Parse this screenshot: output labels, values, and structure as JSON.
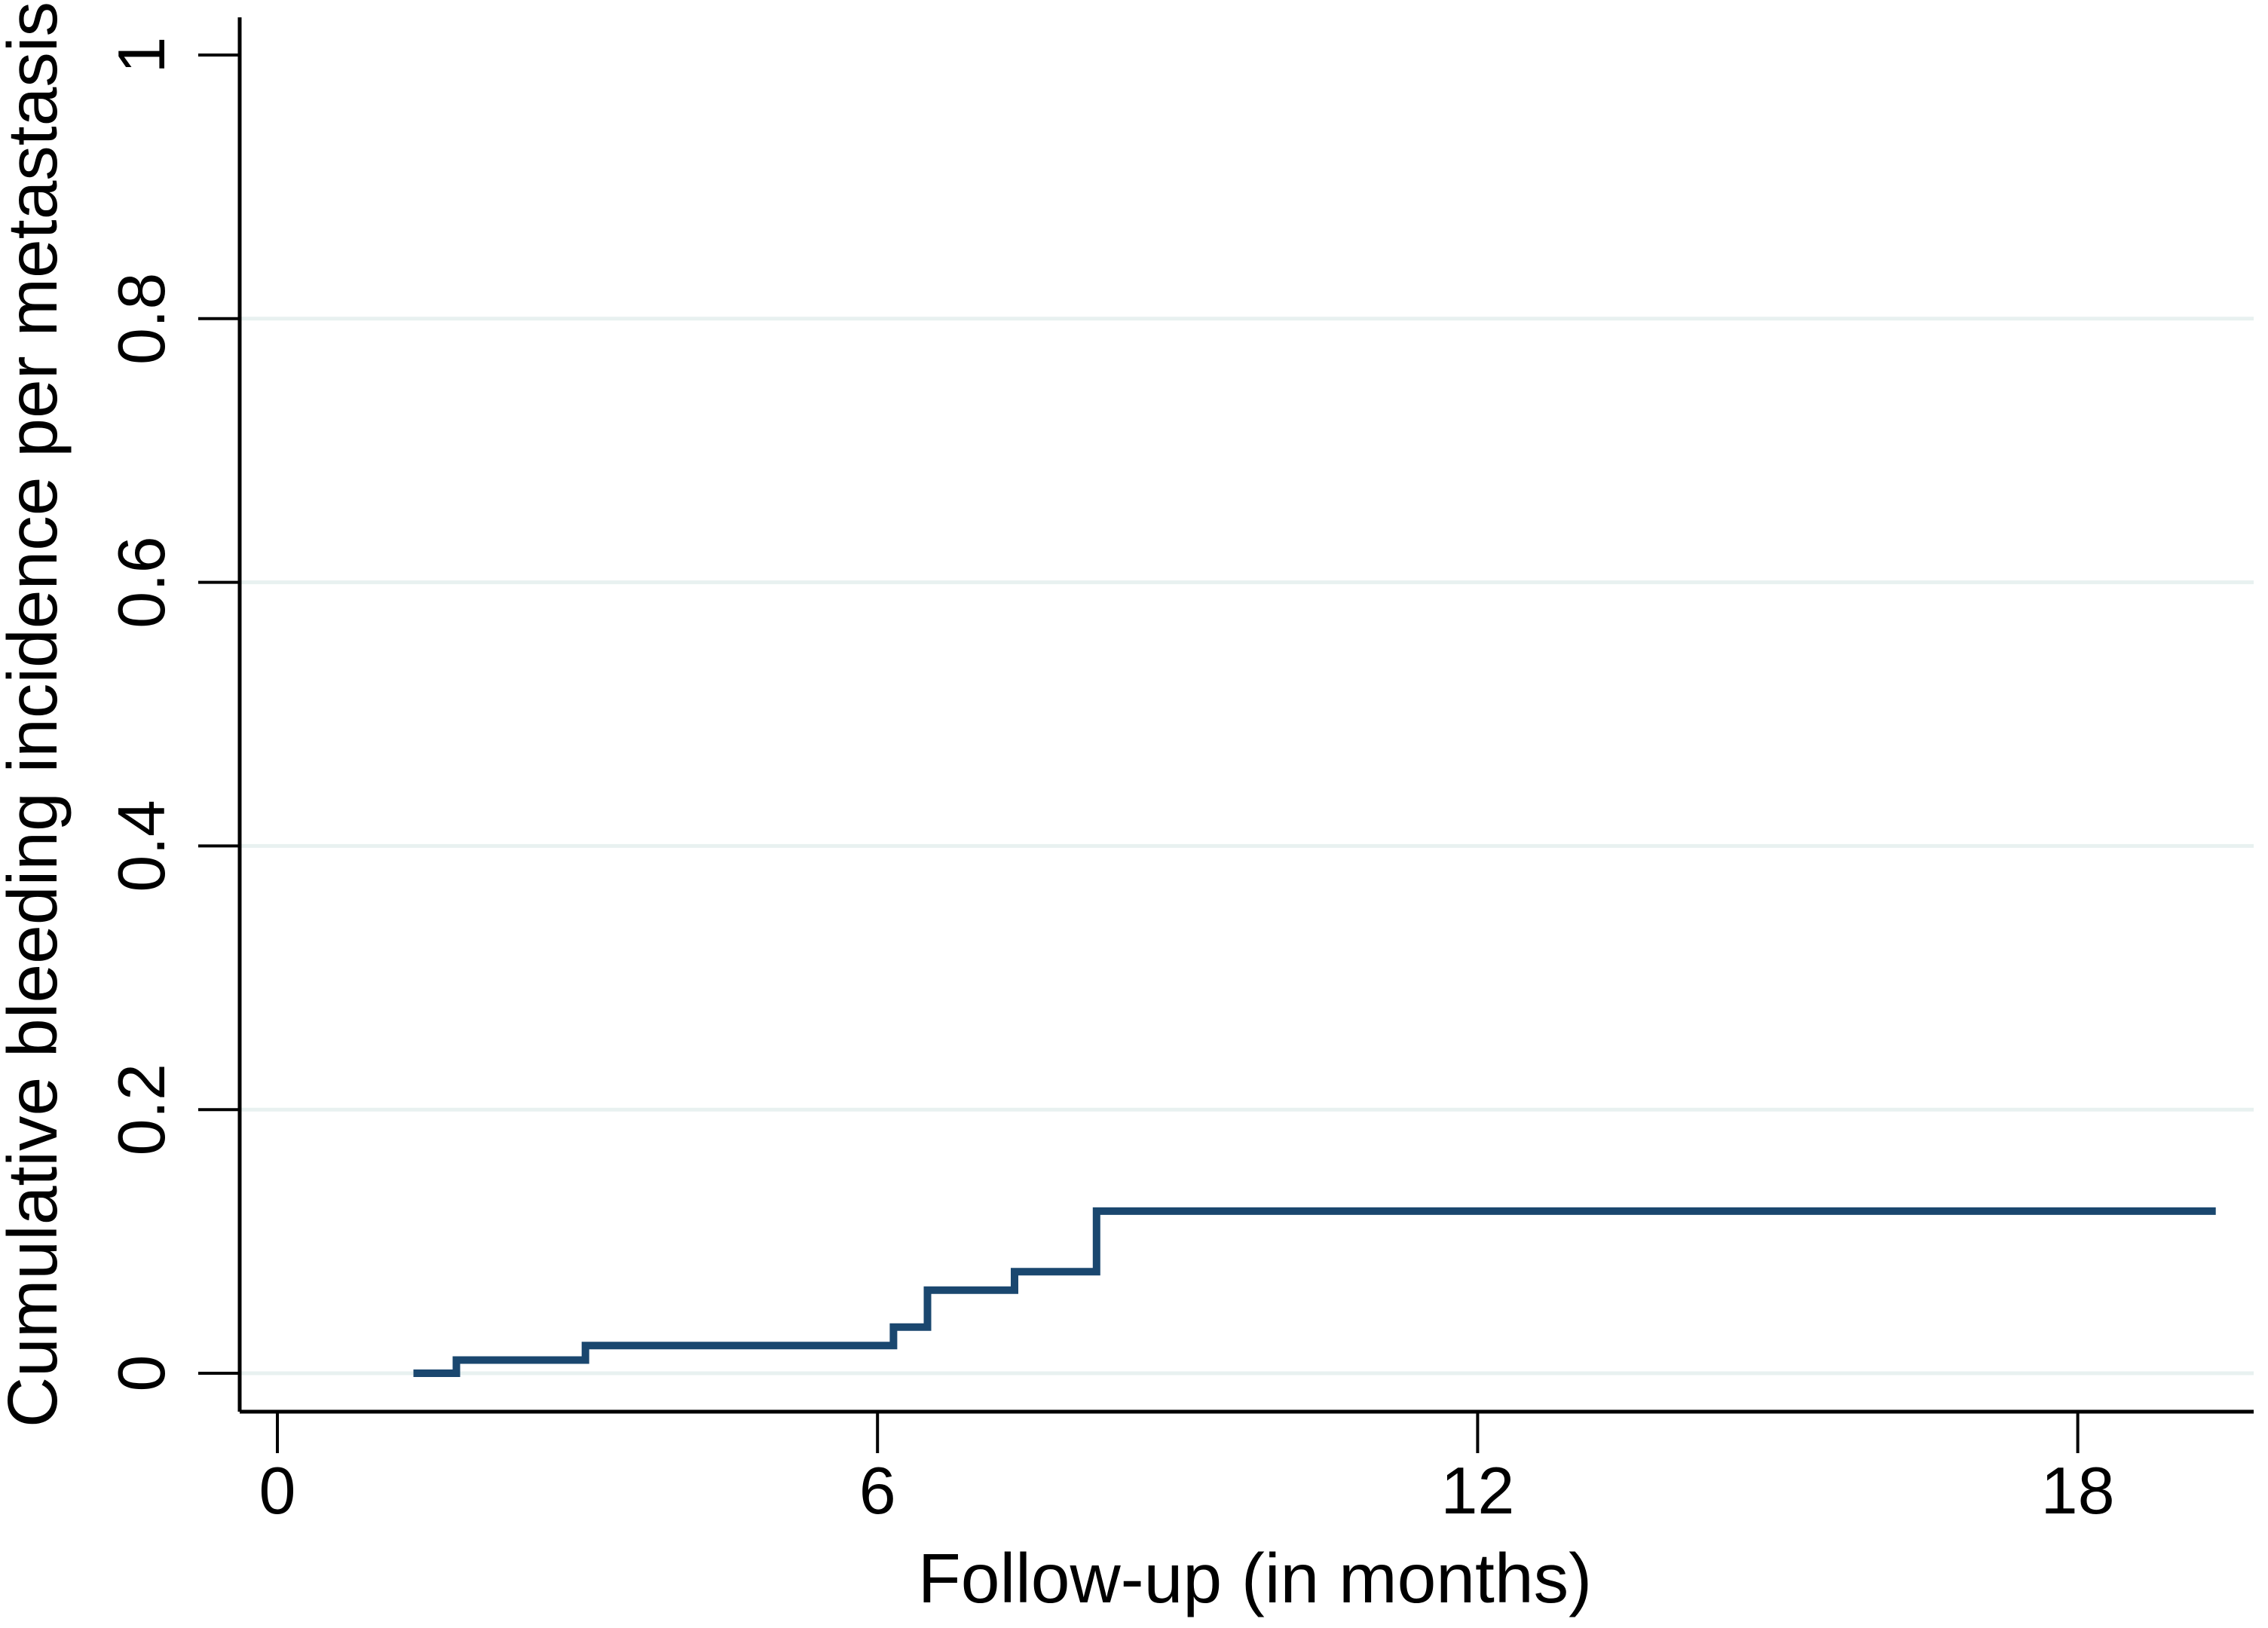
{
  "figure": {
    "background": "#ffffff",
    "title": ""
  },
  "colors": {
    "line": "#1a476f",
    "grid": "#e8f1f0",
    "axis": "#000000",
    "background": "#ffffff"
  },
  "chart_data": {
    "type": "line",
    "subtype": "step-function (cumulative incidence curve)",
    "title": "",
    "xlabel": "Follow-up (in months)",
    "ylabel": "Cumulative bleeding incidence per metastasis",
    "xlim": [
      -0.4,
      19.8
    ],
    "ylim": [
      0,
      1.03
    ],
    "xticks": [
      0,
      6,
      12,
      18
    ],
    "xtick_labels": [
      "0",
      "6",
      "12",
      "18"
    ],
    "yticks": [
      0,
      0.2,
      0.4,
      0.6,
      0.8,
      1
    ],
    "ytick_labels": [
      "0",
      "0.2",
      "0.4",
      "0.6",
      "0.8",
      "1"
    ],
    "ytick_labels_rotated": true,
    "grid": "horizontal only",
    "grid_lines_at": [
      0,
      0.2,
      0.4,
      0.6,
      0.8
    ],
    "legend": "none",
    "series": [
      {
        "name": "Cumulative bleeding incidence",
        "color": "#1a476f",
        "step_points": [
          [
            1.36,
            0
          ],
          [
            1.79,
            0.01
          ],
          [
            3.08,
            0.021
          ],
          [
            6.16,
            0.035
          ],
          [
            6.5,
            0.063
          ],
          [
            7.37,
            0.077
          ],
          [
            8.19,
            0.123
          ],
          [
            19.38,
            0.123
          ]
        ]
      }
    ]
  }
}
